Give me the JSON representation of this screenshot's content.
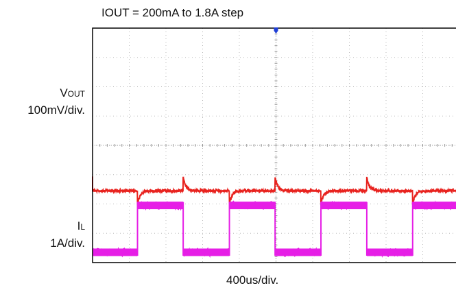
{
  "header": {
    "condition": "IOUT = 200mA to 1.8A step"
  },
  "channels": {
    "vout": {
      "symbol": "V",
      "subscript": "OUT",
      "scale": "100mV/div."
    },
    "il": {
      "symbol": "I",
      "subscript": "L",
      "scale": "1A/div."
    }
  },
  "timebase": {
    "label": "400us/div."
  },
  "colors": {
    "vout": "#e8231f",
    "il": "#e61ee6",
    "grid": "#b8b8b8",
    "frame": "#000000",
    "marker": "#1f3fd6"
  },
  "chart_data": {
    "type": "line",
    "title": "IOUT = 200mA to 1.8A step",
    "xlabel": "400us/div.",
    "ylabel": "",
    "grid": true,
    "divisions": {
      "horizontal": 10,
      "vertical": 8
    },
    "x_units": "us",
    "xlim": [
      0,
      4000
    ],
    "step_times_us": [
      490,
      988,
      1492,
      1990,
      2490,
      2990,
      3490
    ],
    "series": [
      {
        "name": "VOUT",
        "scale": "100mV/div.",
        "baseline_div": 5.55,
        "undershoot_mV": -45,
        "overshoot_mV": 45,
        "transient_settle_us": 120
      },
      {
        "name": "IL",
        "scale": "1A/div.",
        "low_A": 0.2,
        "high_A": 1.8,
        "states": [
          "low",
          "high",
          "low",
          "high",
          "low",
          "high",
          "low",
          "high"
        ]
      }
    ]
  }
}
